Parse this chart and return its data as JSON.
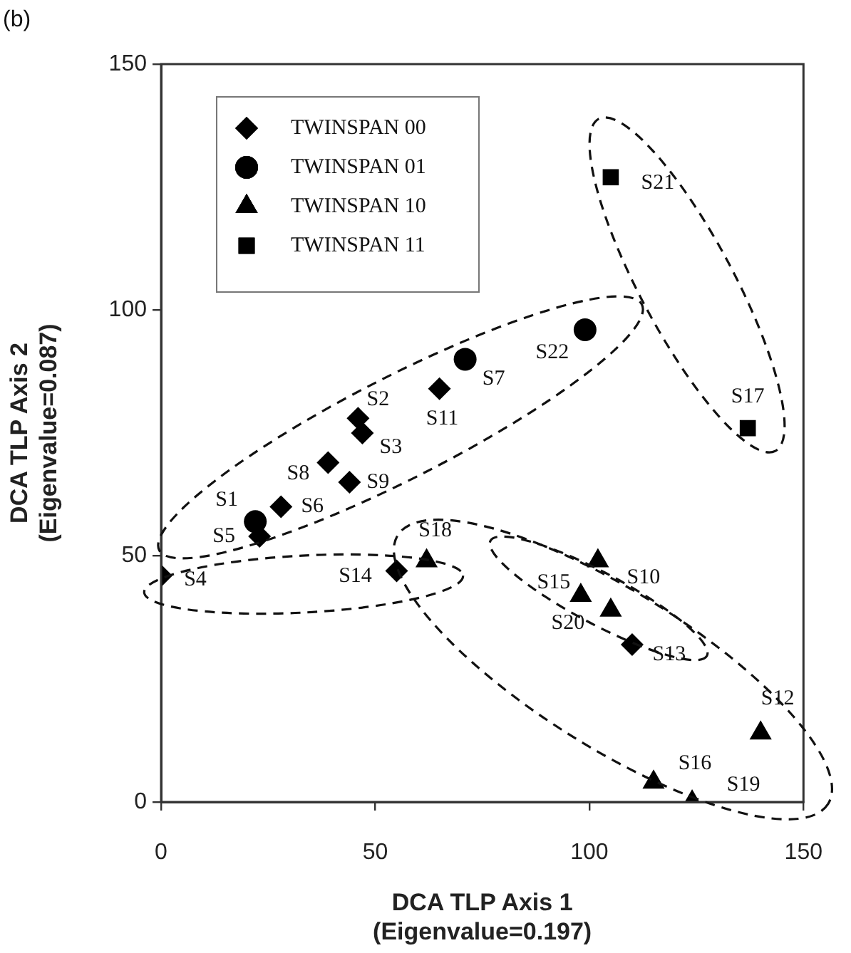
{
  "chart_data": {
    "type": "scatter",
    "xlabel": "DCA TLP Axis 1\n(Eigenvalue=0.197)",
    "ylabel": "DCA TLP Axis 2\n(Eigenvalue=0.087)",
    "xlim": [
      0,
      150
    ],
    "xticks": [
      0,
      50,
      100,
      150
    ],
    "ylim": [
      0,
      150
    ],
    "yticks": [
      0,
      50,
      100,
      150
    ],
    "grid": false,
    "legend": "top left",
    "series": [
      {
        "name": "TWINSPAN 00",
        "color": "#000000",
        "marker": "diamond",
        "x": [
          46,
          47,
          0,
          23,
          28,
          39,
          44,
          65,
          110,
          55
        ],
        "values": [
          78,
          75,
          46,
          54,
          60,
          69,
          65,
          84,
          32,
          47
        ]
      },
      {
        "name": "TWINSPAN 01",
        "color": "#000000",
        "marker": "circle",
        "x": [
          22,
          71,
          99
        ],
        "values": [
          57,
          90,
          96
        ]
      },
      {
        "name": "TWINSPAN 10",
        "color": "#000000",
        "marker": "triangle",
        "x": [
          102,
          140,
          98,
          115,
          62,
          124,
          105
        ],
        "values": [
          49,
          14,
          42,
          4,
          49,
          0,
          39
        ]
      },
      {
        "name": "TWINSPAN 11",
        "color": "#000000",
        "marker": "square",
        "x": [
          105,
          137
        ],
        "values": [
          127,
          76
        ]
      }
    ],
    "annotations": [
      "(b)",
      {
        "text": "S1",
        "x": 22,
        "y": 57
      },
      {
        "text": "S2",
        "x": 46,
        "y": 78
      },
      {
        "text": "S3",
        "x": 47,
        "y": 75
      },
      {
        "text": "S4",
        "x": 0,
        "y": 46
      },
      {
        "text": "S5",
        "x": 23,
        "y": 54
      },
      {
        "text": "S6",
        "x": 28,
        "y": 60
      },
      {
        "text": "S7",
        "x": 71,
        "y": 90
      },
      {
        "text": "S8",
        "x": 39,
        "y": 69
      },
      {
        "text": "S9",
        "x": 44,
        "y": 65
      },
      {
        "text": "S10",
        "x": 102,
        "y": 49
      },
      {
        "text": "S11",
        "x": 65,
        "y": 84
      },
      {
        "text": "S12",
        "x": 140,
        "y": 14
      },
      {
        "text": "S13",
        "x": 110,
        "y": 32
      },
      {
        "text": "S14",
        "x": 55,
        "y": 47
      },
      {
        "text": "S15",
        "x": 98,
        "y": 42
      },
      {
        "text": "S16",
        "x": 115,
        "y": 4
      },
      {
        "text": "S17",
        "x": 137,
        "y": 76
      },
      {
        "text": "S18",
        "x": 62,
        "y": 49
      },
      {
        "text": "S19",
        "x": 124,
        "y": 0
      },
      {
        "text": "S20",
        "x": 105,
        "y": 39
      },
      {
        "text": "S21",
        "x": 105,
        "y": 127
      },
      {
        "text": "S22",
        "x": 99,
        "y": 96
      }
    ]
  }
}
